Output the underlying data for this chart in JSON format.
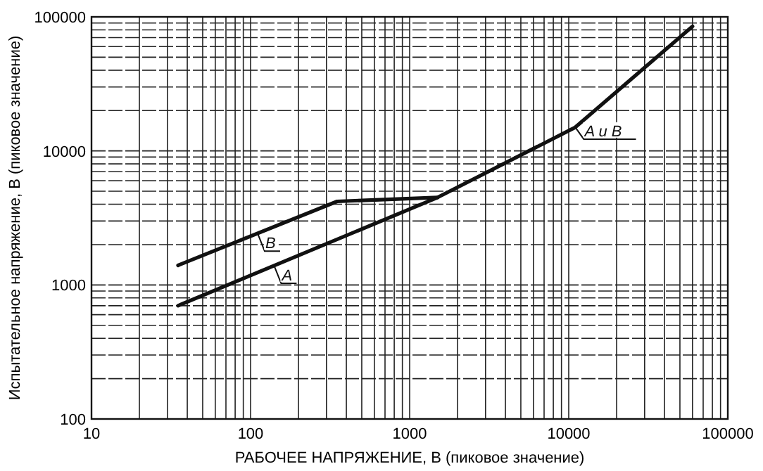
{
  "chart_data": {
    "type": "line",
    "xlabel": "РАБОЧЕЕ НАПРЯЖЕНИЕ, В (пиковое значение)",
    "ylabel": "Испытательное напряжение, В (пиковое значение)",
    "log": "xy",
    "grid": true,
    "line_style": "solid",
    "marker": "none",
    "xlim": [
      10,
      100000
    ],
    "xticks": [
      10,
      100,
      1000,
      10000,
      100000
    ],
    "ylim": [
      100,
      100000
    ],
    "yticks": [
      100,
      1000,
      10000,
      100000
    ],
    "annotations": [
      {
        "text": "A и B",
        "x": 11000,
        "y": 15000
      }
    ],
    "series": [
      {
        "name": "B",
        "color": "#111111",
        "x": [
          35,
          350,
          1500
        ],
        "values": [
          1400,
          4200,
          4500
        ]
      },
      {
        "name": "A",
        "color": "#111111",
        "x": [
          35,
          1500,
          11000,
          60000
        ],
        "values": [
          700,
          4500,
          15000,
          85000
        ]
      }
    ]
  }
}
